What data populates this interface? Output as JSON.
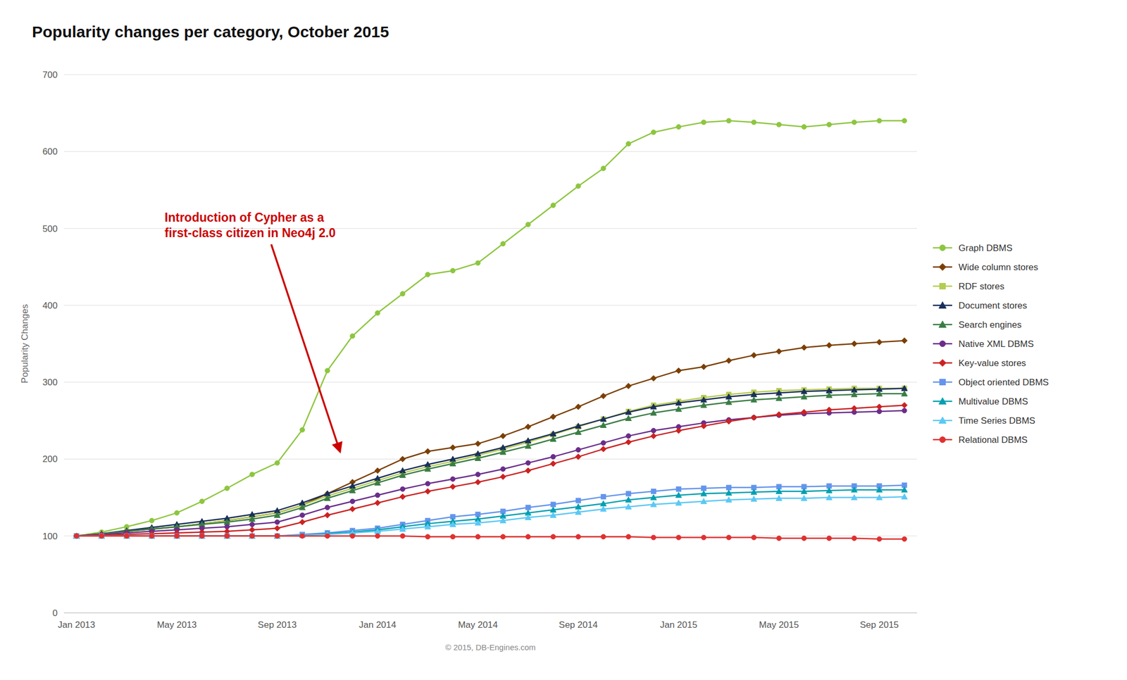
{
  "chart_data": {
    "type": "line",
    "title": "Popularity changes per category, October 2015",
    "y_label": "Popularity Changes",
    "footer": "© 2015, DB-Engines.com",
    "annotations": [
      {
        "text": "Introduction of Cypher as a\nfirst-class citizen in Neo4j 2.0",
        "color": "#cc0000"
      }
    ],
    "ylim": [
      0,
      700
    ],
    "yticks": [
      0,
      100,
      200,
      300,
      400,
      500,
      600,
      700
    ],
    "grid": true,
    "legend": "right",
    "categories": [
      "Jan 2013",
      null,
      null,
      null,
      "May 2013",
      null,
      null,
      null,
      "Sep 2013",
      null,
      null,
      null,
      "Jan 2014",
      null,
      null,
      null,
      "May 2014",
      null,
      null,
      null,
      "Sep 2014",
      null,
      null,
      null,
      "Jan 2015",
      null,
      null,
      null,
      "May 2015",
      null,
      null,
      null,
      "Sep 2015",
      null
    ],
    "series": [
      {
        "name": "Graph DBMS",
        "color": "#8dc63f",
        "marker": "circle",
        "values": [
          100,
          105,
          112,
          120,
          130,
          145,
          162,
          180,
          195,
          238,
          315,
          360,
          390,
          415,
          440,
          445,
          455,
          480,
          505,
          530,
          555,
          578,
          610,
          625,
          632,
          638,
          640,
          638,
          635,
          632,
          635,
          638,
          640,
          640
        ]
      },
      {
        "name": "Wide column stores",
        "color": "#7b3f00",
        "marker": "diamond",
        "values": [
          100,
          103,
          106,
          109,
          112,
          116,
          120,
          125,
          130,
          140,
          155,
          170,
          185,
          200,
          210,
          215,
          220,
          230,
          242,
          255,
          268,
          282,
          295,
          305,
          315,
          320,
          328,
          335,
          340,
          345,
          348,
          350,
          352,
          354
        ]
      },
      {
        "name": "RDF stores",
        "color": "#b5cc52",
        "marker": "square",
        "values": [
          100,
          103,
          106,
          109,
          112,
          116,
          120,
          125,
          130,
          140,
          152,
          162,
          172,
          182,
          190,
          197,
          205,
          213,
          222,
          232,
          242,
          252,
          262,
          270,
          275,
          280,
          284,
          287,
          289,
          290,
          291,
          292,
          292,
          292
        ]
      },
      {
        "name": "Document stores",
        "color": "#1a2f5a",
        "marker": "triangle",
        "values": [
          100,
          103,
          107,
          111,
          115,
          119,
          123,
          128,
          133,
          143,
          155,
          165,
          175,
          185,
          193,
          200,
          207,
          215,
          224,
          233,
          243,
          252,
          261,
          268,
          273,
          277,
          281,
          284,
          286,
          288,
          289,
          290,
          291,
          292
        ]
      },
      {
        "name": "Search engines",
        "color": "#3a7d44",
        "marker": "triangle",
        "values": [
          100,
          103,
          106,
          109,
          112,
          115,
          118,
          122,
          127,
          137,
          149,
          159,
          169,
          179,
          187,
          194,
          201,
          209,
          217,
          226,
          235,
          244,
          253,
          260,
          265,
          270,
          274,
          277,
          279,
          281,
          283,
          284,
          285,
          285
        ]
      },
      {
        "name": "Native XML DBMS",
        "color": "#6b2d8b",
        "marker": "circle",
        "values": [
          100,
          102,
          104,
          106,
          108,
          110,
          112,
          115,
          118,
          127,
          137,
          145,
          153,
          161,
          168,
          174,
          180,
          187,
          195,
          203,
          212,
          221,
          230,
          237,
          242,
          247,
          251,
          254,
          257,
          259,
          260,
          261,
          262,
          263
        ]
      },
      {
        "name": "Key-value stores",
        "color": "#cc2222",
        "marker": "diamond",
        "values": [
          100,
          101,
          102,
          103,
          104,
          105,
          106,
          108,
          110,
          118,
          127,
          135,
          143,
          151,
          158,
          164,
          170,
          177,
          185,
          194,
          203,
          213,
          222,
          230,
          237,
          243,
          249,
          254,
          258,
          261,
          264,
          266,
          268,
          270
        ]
      },
      {
        "name": "Object oriented DBMS",
        "color": "#6495ed",
        "marker": "square",
        "values": [
          100,
          100,
          100,
          100,
          100,
          100,
          100,
          100,
          100,
          102,
          104,
          107,
          110,
          115,
          120,
          125,
          128,
          132,
          137,
          141,
          146,
          151,
          155,
          158,
          161,
          162,
          163,
          163,
          164,
          164,
          165,
          165,
          165,
          166
        ]
      },
      {
        "name": "Multivalue DBMS",
        "color": "#00a0b0",
        "marker": "triangle",
        "values": [
          100,
          100,
          100,
          100,
          100,
          100,
          100,
          100,
          100,
          101,
          103,
          105,
          108,
          112,
          116,
          119,
          122,
          126,
          130,
          134,
          138,
          142,
          147,
          150,
          153,
          155,
          156,
          157,
          158,
          158,
          159,
          160,
          160,
          160
        ]
      },
      {
        "name": "Time Series DBMS",
        "color": "#5bc8f5",
        "marker": "triangle",
        "values": [
          100,
          100,
          100,
          100,
          100,
          100,
          100,
          100,
          100,
          101,
          102,
          104,
          106,
          109,
          112,
          115,
          117,
          120,
          124,
          127,
          131,
          135,
          138,
          141,
          143,
          145,
          147,
          148,
          149,
          149,
          150,
          150,
          150,
          151
        ]
      },
      {
        "name": "Relational DBMS",
        "color": "#e03030",
        "marker": "circle",
        "values": [
          100,
          100,
          100,
          100,
          100,
          100,
          100,
          100,
          100,
          100,
          100,
          100,
          100,
          100,
          99,
          99,
          99,
          99,
          99,
          99,
          99,
          99,
          99,
          98,
          98,
          98,
          98,
          98,
          97,
          97,
          97,
          97,
          96,
          96
        ]
      }
    ]
  }
}
